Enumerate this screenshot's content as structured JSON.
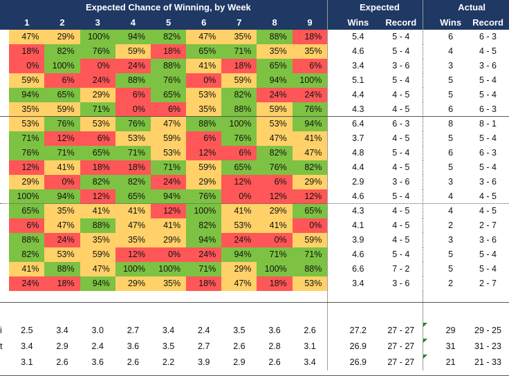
{
  "header": {
    "weekly_title": "Expected Chance of Winning, by Week",
    "expected_title": "Expected",
    "actual_title": "Actual",
    "weeks": [
      "1",
      "2",
      "3",
      "4",
      "5",
      "6",
      "7",
      "8",
      "9"
    ],
    "wins_label": "Wins",
    "record_label": "Record"
  },
  "colors": {
    "header_bg": "#1F3864",
    "high": "#7DC242",
    "mid": "#FFD168",
    "low": "#FF5757"
  },
  "rows": [
    {
      "pct": [
        47,
        29,
        100,
        94,
        82,
        47,
        35,
        88,
        18
      ],
      "exp_wins": "5.4",
      "exp_rec": "5 - 4",
      "act_wins": "6",
      "act_rec": "6 - 3"
    },
    {
      "pct": [
        18,
        82,
        76,
        59,
        18,
        65,
        71,
        35,
        35
      ],
      "exp_wins": "4.6",
      "exp_rec": "5 - 4",
      "act_wins": "4",
      "act_rec": "4 - 5"
    },
    {
      "pct": [
        0,
        100,
        0,
        24,
        88,
        41,
        18,
        65,
        6
      ],
      "exp_wins": "3.4",
      "exp_rec": "3 - 6",
      "act_wins": "3",
      "act_rec": "3 - 6"
    },
    {
      "pct": [
        59,
        6,
        24,
        88,
        76,
        0,
        59,
        94,
        100
      ],
      "exp_wins": "5.1",
      "exp_rec": "5 - 4",
      "act_wins": "5",
      "act_rec": "5 - 4"
    },
    {
      "pct": [
        94,
        65,
        29,
        6,
        65,
        53,
        82,
        24,
        24
      ],
      "exp_wins": "4.4",
      "exp_rec": "4 - 5",
      "act_wins": "5",
      "act_rec": "5 - 4"
    },
    {
      "pct": [
        35,
        59,
        71,
        0,
        6,
        35,
        88,
        59,
        76
      ],
      "exp_wins": "4.3",
      "exp_rec": "4 - 5",
      "act_wins": "6",
      "act_rec": "6 - 3"
    },
    {
      "pct": [
        53,
        76,
        53,
        76,
        47,
        88,
        100,
        53,
        94
      ],
      "exp_wins": "6.4",
      "exp_rec": "6 - 3",
      "act_wins": "8",
      "act_rec": "8 - 1"
    },
    {
      "pct": [
        71,
        12,
        6,
        53,
        59,
        6,
        76,
        47,
        41
      ],
      "exp_wins": "3.7",
      "exp_rec": "4 - 5",
      "act_wins": "5",
      "act_rec": "5 - 4"
    },
    {
      "pct": [
        76,
        71,
        65,
        71,
        53,
        12,
        6,
        82,
        47
      ],
      "exp_wins": "4.8",
      "exp_rec": "5 - 4",
      "act_wins": "6",
      "act_rec": "6 - 3"
    },
    {
      "pct": [
        12,
        41,
        18,
        18,
        71,
        59,
        65,
        76,
        82
      ],
      "exp_wins": "4.4",
      "exp_rec": "4 - 5",
      "act_wins": "5",
      "act_rec": "5 - 4"
    },
    {
      "pct": [
        29,
        0,
        82,
        82,
        24,
        29,
        12,
        6,
        29
      ],
      "exp_wins": "2.9",
      "exp_rec": "3 - 6",
      "act_wins": "3",
      "act_rec": "3 - 6"
    },
    {
      "pct": [
        100,
        94,
        12,
        65,
        94,
        76,
        0,
        12,
        12
      ],
      "exp_wins": "4.6",
      "exp_rec": "5 - 4",
      "act_wins": "4",
      "act_rec": "4 - 5"
    },
    {
      "pct": [
        65,
        35,
        41,
        41,
        12,
        100,
        41,
        29,
        65
      ],
      "exp_wins": "4.3",
      "exp_rec": "4 - 5",
      "act_wins": "4",
      "act_rec": "4 - 5"
    },
    {
      "pct": [
        6,
        47,
        88,
        47,
        41,
        82,
        53,
        41,
        0
      ],
      "exp_wins": "4.1",
      "exp_rec": "4 - 5",
      "act_wins": "2",
      "act_rec": "2 - 7"
    },
    {
      "pct": [
        88,
        24,
        35,
        35,
        29,
        94,
        24,
        0,
        59
      ],
      "exp_wins": "3.9",
      "exp_rec": "4 - 5",
      "act_wins": "3",
      "act_rec": "3 - 6"
    },
    {
      "pct": [
        82,
        53,
        59,
        12,
        0,
        24,
        94,
        71,
        71
      ],
      "exp_wins": "4.6",
      "exp_rec": "5 - 4",
      "act_wins": "5",
      "act_rec": "5 - 4"
    },
    {
      "pct": [
        41,
        88,
        47,
        100,
        100,
        71,
        29,
        100,
        88
      ],
      "exp_wins": "6.6",
      "exp_rec": "7 - 2",
      "act_wins": "5",
      "act_rec": "5 - 4"
    },
    {
      "pct": [
        24,
        18,
        94,
        29,
        35,
        18,
        47,
        18,
        53
      ],
      "exp_wins": "3.4",
      "exp_rec": "3 - 6",
      "act_wins": "2",
      "act_rec": "2 - 7"
    }
  ],
  "summary": [
    {
      "label": "i",
      "vals": [
        "2.5",
        "3.4",
        "3.0",
        "2.7",
        "3.4",
        "2.4",
        "3.5",
        "3.6",
        "2.6"
      ],
      "exp_wins": "27.2",
      "exp_rec": "27 - 27",
      "act_wins": "29",
      "act_rec": "29 - 25"
    },
    {
      "label": "t",
      "vals": [
        "3.4",
        "2.9",
        "2.4",
        "3.6",
        "3.5",
        "2.7",
        "2.6",
        "2.8",
        "3.1"
      ],
      "exp_wins": "26.9",
      "exp_rec": "27 - 27",
      "act_wins": "31",
      "act_rec": "31 - 23"
    },
    {
      "label": "",
      "vals": [
        "3.1",
        "2.6",
        "3.6",
        "2.6",
        "2.2",
        "3.9",
        "2.9",
        "2.6",
        "3.4"
      ],
      "exp_wins": "26.9",
      "exp_rec": "27 - 27",
      "act_wins": "21",
      "act_rec": "21 - 33"
    }
  ]
}
